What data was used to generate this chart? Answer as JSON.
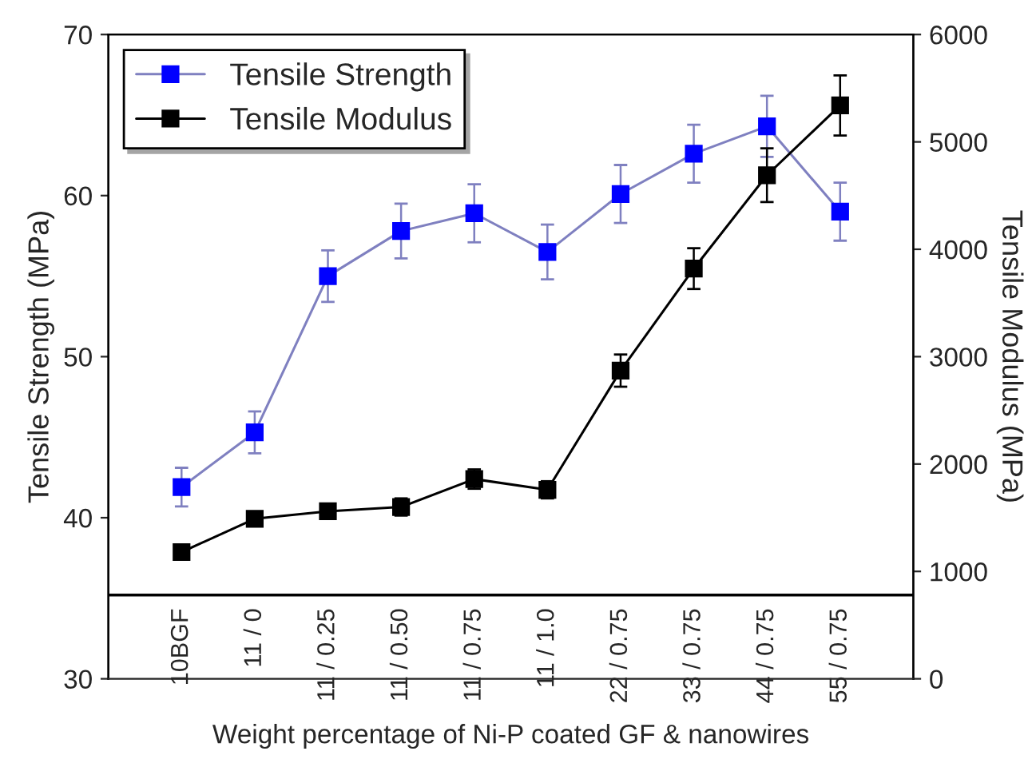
{
  "chart_data": {
    "type": "line",
    "xlabel": "Weight percentage of Ni-P coated GF & nanowires",
    "ylabel": "Tensile Strength (MPa)",
    "y2label": "Tensile Modulus (MPa)",
    "categories": [
      "10BGF",
      "11 / 0",
      "11 / 0.25",
      "11 / 0.50",
      "11 / 0.75",
      "11 / 1.0",
      "22 / 0.75",
      "33 / 0.75",
      "44 / 0.75",
      "55 / 0.75"
    ],
    "series": [
      {
        "name": "Tensile Strength",
        "color": "#0000ff",
        "values": [
          41.9,
          45.3,
          55.0,
          57.8,
          58.9,
          56.5,
          60.1,
          62.6,
          64.3,
          59.0
        ],
        "errors": [
          1.2,
          1.3,
          1.6,
          1.7,
          1.8,
          1.7,
          1.8,
          1.8,
          1.9,
          1.8
        ]
      },
      {
        "name": "Tensile Modulus",
        "color": "#000000",
        "axis": "y2",
        "values": [
          1180,
          1490,
          1560,
          1600,
          1860,
          1760,
          2870,
          3820,
          4690,
          5340
        ],
        "errors": [
          50,
          60,
          70,
          80,
          90,
          80,
          150,
          190,
          250,
          280
        ]
      }
    ],
    "ylim": [
      30,
      70
    ],
    "yticks": [
      30,
      40,
      50,
      60,
      70
    ],
    "y2lim": [
      0,
      6000
    ],
    "y2ticks": [
      0,
      1000,
      2000,
      3000,
      4000,
      5000,
      6000
    ],
    "ref_lines": [
      {
        "axis": "y",
        "value": 35.2,
        "color": "#000000"
      }
    ],
    "marker": "square",
    "line_style": "solid",
    "legend": "top left",
    "grid": false
  }
}
